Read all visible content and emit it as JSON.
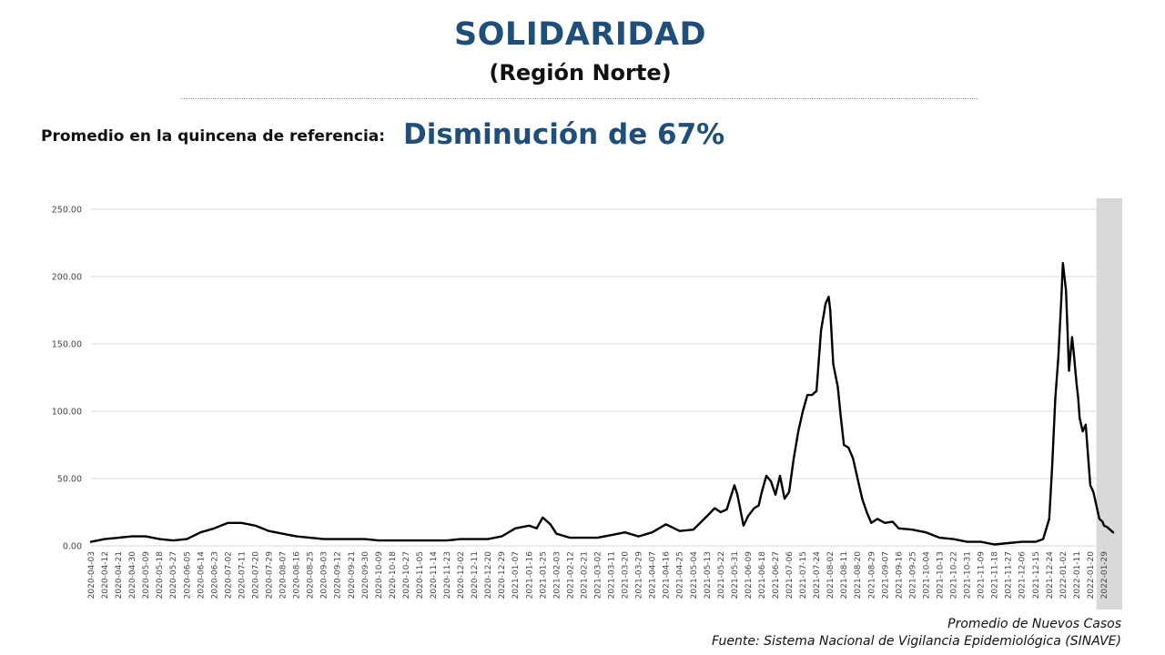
{
  "header": {
    "title": "SOLIDARIDAD",
    "subtitle": "(Región Norte)"
  },
  "reference": {
    "label": "Promedio en la quincena de referencia:",
    "value": "Disminución de 67%"
  },
  "footer": {
    "legend_label": "Promedio de Nuevos Casos",
    "source": "Fuente: Sistema Nacional de Vigilancia Epidemiológica (SINAVE)"
  },
  "colors": {
    "title": "#1f4e79",
    "line": "#000000",
    "grid": "#d9d9d9",
    "reference_band": "#d9d9d9"
  },
  "chart_data": {
    "type": "line",
    "title": "",
    "xlabel": "",
    "ylabel": "",
    "ylim": [
      0,
      250
    ],
    "y_ticks": [
      "0.00",
      "50.00",
      "100.00",
      "150.00",
      "200.00",
      "250.00"
    ],
    "grid": true,
    "x_tick_labels": [
      "2020-04-03",
      "2020-04-12",
      "2020-04-21",
      "2020-04-30",
      "2020-05-09",
      "2020-05-18",
      "2020-05-27",
      "2020-06-05",
      "2020-06-14",
      "2020-06-23",
      "2020-07-02",
      "2020-07-11",
      "2020-07-20",
      "2020-07-29",
      "2020-08-07",
      "2020-08-16",
      "2020-08-25",
      "2020-09-03",
      "2020-09-12",
      "2020-09-21",
      "2020-09-30",
      "2020-10-09",
      "2020-10-18",
      "2020-10-27",
      "2020-11-05",
      "2020-11-14",
      "2020-11-23",
      "2020-12-02",
      "2020-12-11",
      "2020-12-20",
      "2020-12-29",
      "2021-01-07",
      "2021-01-16",
      "2021-01-25",
      "2021-02-03",
      "2021-02-12",
      "2021-02-21",
      "2021-03-02",
      "2021-03-11",
      "2021-03-20",
      "2021-03-29",
      "2021-04-07",
      "2021-04-16",
      "2021-04-25",
      "2021-05-04",
      "2021-05-13",
      "2021-05-22",
      "2021-05-31",
      "2021-06-09",
      "2021-06-18",
      "2021-06-27",
      "2021-07-06",
      "2021-07-15",
      "2021-07-24",
      "2021-08-02",
      "2021-08-11",
      "2021-08-20",
      "2021-08-29",
      "2021-09-07",
      "2021-09-16",
      "2021-09-25",
      "2021-10-04",
      "2021-10-13",
      "2021-10-22",
      "2021-10-31",
      "2021-11-09",
      "2021-11-18",
      "2021-11-27",
      "2021-12-06",
      "2021-12-15",
      "2021-12-24",
      "2022-01-02",
      "2022-01-11",
      "2022-01-20",
      "2022-01-29"
    ],
    "highlight_band": [
      "2022-01-24",
      "2022-02-07"
    ],
    "series": [
      {
        "x": [
          "2020-04-03",
          "2020-04-12",
          "2020-04-21",
          "2020-04-30",
          "2020-05-09",
          "2020-05-18",
          "2020-05-27",
          "2020-06-05",
          "2020-06-14",
          "2020-06-23",
          "2020-07-02",
          "2020-07-11",
          "2020-07-20",
          "2020-07-29",
          "2020-08-07",
          "2020-08-16",
          "2020-08-25",
          "2020-09-03",
          "2020-09-12",
          "2020-09-21",
          "2020-09-30",
          "2020-10-09",
          "2020-10-18",
          "2020-10-27",
          "2020-11-05",
          "2020-11-14",
          "2020-11-23",
          "2020-12-02",
          "2020-12-11",
          "2020-12-20",
          "2020-12-29",
          "2021-01-07",
          "2021-01-16",
          "2021-01-21",
          "2021-01-25",
          "2021-01-30",
          "2021-02-03",
          "2021-02-12",
          "2021-02-21",
          "2021-03-02",
          "2021-03-11",
          "2021-03-20",
          "2021-03-29",
          "2021-04-07",
          "2021-04-16",
          "2021-04-25",
          "2021-05-04",
          "2021-05-13",
          "2021-05-18",
          "2021-05-22",
          "2021-05-26",
          "2021-05-31",
          "2021-06-02",
          "2021-06-06",
          "2021-06-09",
          "2021-06-13",
          "2021-06-16",
          "2021-06-18",
          "2021-06-21",
          "2021-06-24",
          "2021-06-27",
          "2021-06-30",
          "2021-07-03",
          "2021-07-06",
          "2021-07-09",
          "2021-07-12",
          "2021-07-15",
          "2021-07-18",
          "2021-07-21",
          "2021-07-24",
          "2021-07-27",
          "2021-07-30",
          "2021-08-01",
          "2021-08-02",
          "2021-08-04",
          "2021-08-07",
          "2021-08-09",
          "2021-08-11",
          "2021-08-14",
          "2021-08-17",
          "2021-08-20",
          "2021-08-23",
          "2021-08-26",
          "2021-08-29",
          "2021-09-02",
          "2021-09-07",
          "2021-09-12",
          "2021-09-16",
          "2021-09-25",
          "2021-10-04",
          "2021-10-13",
          "2021-10-22",
          "2021-10-31",
          "2021-11-09",
          "2021-11-18",
          "2021-11-27",
          "2021-12-06",
          "2021-12-15",
          "2021-12-20",
          "2021-12-24",
          "2021-12-26",
          "2021-12-28",
          "2021-12-30",
          "2022-01-01",
          "2022-01-02",
          "2022-01-04",
          "2022-01-05",
          "2022-01-06",
          "2022-01-08",
          "2022-01-09",
          "2022-01-11",
          "2022-01-12",
          "2022-01-13",
          "2022-01-15",
          "2022-01-17",
          "2022-01-20",
          "2022-01-22",
          "2022-01-24",
          "2022-01-26",
          "2022-01-28",
          "2022-01-29",
          "2022-01-31",
          "2022-02-02",
          "2022-02-04"
        ],
        "values": [
          3,
          5,
          6,
          7,
          7,
          5,
          4,
          5,
          10,
          13,
          17,
          17,
          15,
          11,
          9,
          7,
          6,
          5,
          5,
          5,
          5,
          4,
          4,
          4,
          4,
          4,
          4,
          5,
          5,
          5,
          7,
          13,
          15,
          13,
          21,
          16,
          9,
          6,
          6,
          6,
          8,
          10,
          7,
          10,
          16,
          11,
          12,
          22,
          28,
          25,
          27,
          45,
          38,
          15,
          22,
          28,
          30,
          40,
          52,
          48,
          38,
          52,
          35,
          40,
          65,
          85,
          100,
          112,
          112,
          115,
          160,
          180,
          185,
          175,
          135,
          118,
          95,
          75,
          73,
          65,
          50,
          35,
          25,
          17,
          20,
          17,
          18,
          13,
          12,
          10,
          6,
          5,
          3,
          3,
          1,
          2,
          3,
          3,
          5,
          20,
          60,
          110,
          140,
          185,
          210,
          190,
          160,
          130,
          155,
          145,
          120,
          110,
          95,
          85,
          90,
          45,
          40,
          30,
          20,
          18,
          15,
          14,
          12,
          10
        ],
        "line_color": "#000000"
      }
    ]
  }
}
